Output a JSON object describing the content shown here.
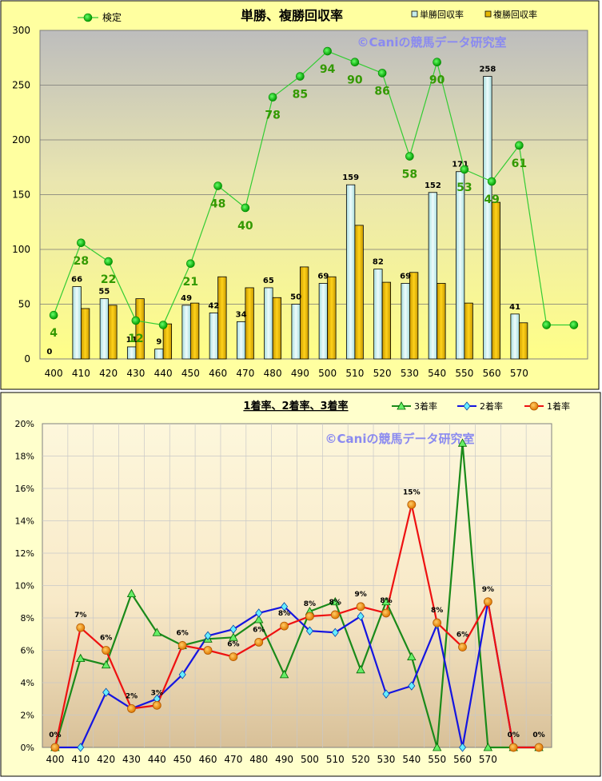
{
  "chart_data": [
    {
      "type": "bar",
      "title": "単勝、複勝回収率",
      "watermark": "©Caniの競馬データ研究室",
      "categories": [
        "400",
        "410",
        "420",
        "430",
        "440",
        "450",
        "460",
        "470",
        "480",
        "490",
        "500",
        "510",
        "520",
        "530",
        "540",
        "550",
        "560",
        "570",
        "",
        ""
      ],
      "ylim": [
        0,
        300
      ],
      "yticks": [
        "0",
        "50",
        "100",
        "150",
        "200",
        "250",
        "300"
      ],
      "legend_position": "top",
      "background": "gradient-gray-to-yellow",
      "series": [
        {
          "name": "単勝回収率",
          "kind": "bar",
          "color": "#c6ecec",
          "values": [
            0,
            66,
            55,
            11,
            9,
            49,
            42,
            34,
            65,
            50,
            69,
            159,
            82,
            69,
            152,
            171,
            258,
            41,
            null,
            null
          ],
          "labels": [
            "0",
            "66",
            "55",
            "11",
            "9",
            "49",
            "42",
            "34",
            "65",
            "50",
            "69",
            "159",
            "82",
            "69",
            "152",
            "171",
            "258",
            "41",
            "",
            ""
          ]
        },
        {
          "name": "複勝回収率",
          "kind": "bar",
          "color": "#e6b800",
          "values": [
            0,
            46,
            49,
            55,
            32,
            51,
            75,
            65,
            56,
            84,
            75,
            122,
            70,
            79,
            69,
            51,
            143,
            33,
            null,
            null
          ]
        },
        {
          "name": "検定",
          "kind": "line",
          "color": "#33cc33",
          "values": [
            40,
            106,
            89,
            35,
            31,
            87,
            158,
            138,
            239,
            258,
            281,
            271,
            261,
            185,
            271,
            173,
            162,
            195,
            31,
            31
          ],
          "labels": [
            "4",
            "28",
            "22",
            "12",
            "",
            "21",
            "48",
            "40",
            "78",
            "85",
            "94",
            "90",
            "86",
            "58",
            "90",
            "53",
            "49",
            "61",
            "",
            ""
          ]
        }
      ]
    },
    {
      "type": "line",
      "title": "1着率、2着率、3着率",
      "watermark": "©Caniの競馬データ研究室",
      "categories": [
        "400",
        "410",
        "420",
        "430",
        "440",
        "450",
        "460",
        "470",
        "480",
        "490",
        "500",
        "510",
        "520",
        "530",
        "540",
        "550",
        "560",
        "570",
        "",
        ""
      ],
      "ylim": [
        0,
        20
      ],
      "yticks": [
        "0%",
        "2%",
        "4%",
        "6%",
        "8%",
        "10%",
        "12%",
        "14%",
        "16%",
        "18%",
        "20%"
      ],
      "legend_position": "top-right",
      "background": "gradient-cream-to-tan",
      "series": [
        {
          "name": "3着率",
          "color": "#1a8a1a",
          "marker": "triangle",
          "values": [
            0,
            5.5,
            5.1,
            9.5,
            7.1,
            6.3,
            6.7,
            6.8,
            7.9,
            4.5,
            8.4,
            9.0,
            4.8,
            9.0,
            5.6,
            0,
            18.8,
            0,
            0,
            0
          ]
        },
        {
          "name": "2着率",
          "color": "#1515e0",
          "marker": "diamond",
          "values": [
            0,
            0,
            3.4,
            2.4,
            3.0,
            4.5,
            6.9,
            7.3,
            8.3,
            8.7,
            7.2,
            7.1,
            8.1,
            3.3,
            3.8,
            7.6,
            0,
            9.0,
            0,
            0
          ]
        },
        {
          "name": "1着率",
          "color": "#ee1111",
          "marker": "circle",
          "values": [
            0,
            7.4,
            6.0,
            2.4,
            2.6,
            6.3,
            6.0,
            5.6,
            6.5,
            7.5,
            8.1,
            8.2,
            8.7,
            8.3,
            15.0,
            7.7,
            6.2,
            9.0,
            0,
            0
          ],
          "labels": [
            "0%",
            "7%",
            "6%",
            "2%",
            "3%",
            "6%",
            "",
            "6%",
            "6%",
            "8%",
            "8%",
            "8%",
            "9%",
            "8%",
            "15%",
            "8%",
            "6%",
            "9%",
            "0%",
            "0%"
          ]
        }
      ]
    }
  ]
}
